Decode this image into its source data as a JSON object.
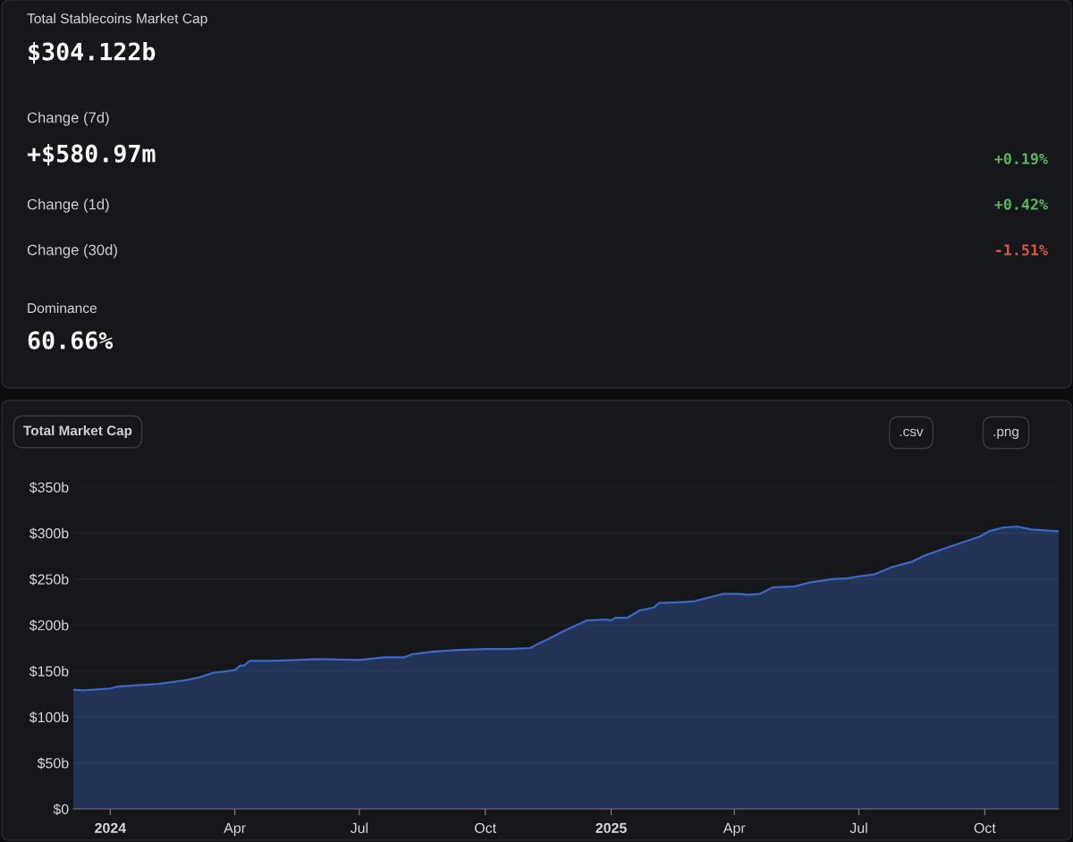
{
  "chart_data": [
    {
      "type": "other",
      "annotations": [
        "Total Stablecoins Market Cap",
        "$304.122b",
        "Change (7d)",
        "+$580.97m",
        "+0.19%",
        "Change (1d)",
        "+0.42%",
        "Change (30d)",
        "-1.51%",
        "Dominance",
        "60.66%"
      ]
    },
    {
      "type": "area",
      "annotations": [
        "Total Market Cap",
        ".csv",
        ".png"
      ],
      "x": [
        "2023-12-05",
        "2023-12-12",
        "2024-01-01",
        "2024-01-06",
        "2024-01-26",
        "2024-02-05",
        "2024-02-25",
        "2024-03-06",
        "2024-03-16",
        "2024-04-01",
        "2024-04-05",
        "2024-04-08",
        "2024-04-10",
        "2024-04-12",
        "2024-04-26",
        "2024-05-16",
        "2024-05-31",
        "2024-07-01",
        "2024-07-19",
        "2024-08-03",
        "2024-08-08",
        "2024-08-23",
        "2024-09-12",
        "2024-10-01",
        "2024-10-18",
        "2024-11-03",
        "2024-11-09",
        "2024-11-15",
        "2024-11-28",
        "2024-12-14",
        "2024-12-28",
        "2025-01-01",
        "2025-01-04",
        "2025-01-13",
        "2025-01-22",
        "2025-02-01",
        "2025-02-05",
        "2025-02-23",
        "2025-03-03",
        "2025-03-24",
        "2025-04-04",
        "2025-04-11",
        "2025-04-20",
        "2025-04-29",
        "2025-05-15",
        "2025-05-25",
        "2025-06-12",
        "2025-06-23",
        "2025-07-01",
        "2025-07-12",
        "2025-07-25",
        "2025-08-09",
        "2025-08-17",
        "2025-08-30",
        "2025-09-09",
        "2025-09-27",
        "2025-10-04",
        "2025-10-14",
        "2025-10-25",
        "2025-11-04",
        "2025-11-14",
        "2025-11-24"
      ],
      "series": [
        {
          "color": "#3d68c8",
          "values": [
            129.6,
            129,
            131,
            133,
            135,
            136,
            140,
            143,
            148,
            151,
            156,
            156,
            159,
            161,
            161,
            162,
            163,
            162,
            165,
            165,
            168,
            171,
            173,
            174,
            174,
            175,
            180,
            184,
            194,
            205,
            206,
            205,
            208,
            208,
            216,
            219,
            224,
            225,
            226,
            234,
            234,
            233,
            234,
            241,
            242,
            246,
            250,
            251,
            253,
            255,
            263,
            269,
            275,
            282,
            287,
            296,
            302,
            306,
            307,
            304,
            303,
            302
          ]
        }
      ],
      "xlim": [
        "2023-12-05",
        "2025-11-24"
      ],
      "xticks": [
        {
          "value": "2024-01-01",
          "label": "2024"
        },
        {
          "value": "2024-04-01",
          "label": "Apr"
        },
        {
          "value": "2024-07-01",
          "label": "Jul"
        },
        {
          "value": "2024-10-01",
          "label": "Oct"
        },
        {
          "value": "2025-01-01",
          "label": "2025"
        },
        {
          "value": "2025-04-01",
          "label": "Apr"
        },
        {
          "value": "2025-07-01",
          "label": "Jul"
        },
        {
          "value": "2025-10-01",
          "label": "Oct"
        }
      ],
      "ylim": [
        0,
        350
      ],
      "yticks": [
        {
          "value": 0,
          "label": "$0"
        },
        {
          "value": 50,
          "label": "$50b"
        },
        {
          "value": 100,
          "label": "$100b"
        },
        {
          "value": 150,
          "label": "$150b"
        },
        {
          "value": 200,
          "label": "$200b"
        },
        {
          "value": 250,
          "label": "$250b"
        },
        {
          "value": 300,
          "label": "$300b"
        },
        {
          "value": 350,
          "label": "$350b"
        }
      ],
      "grid": "y"
    }
  ]
}
